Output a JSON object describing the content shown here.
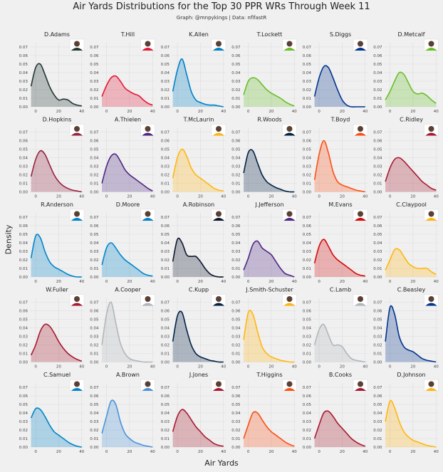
{
  "chart_data": {
    "type": "area",
    "title": "Air Yards Distributions for the Top 30 PPR WRs Through Week 11",
    "subtitle": "Graph: @mnpykings | Data: nflfastR",
    "xlabel": "Air Yards",
    "ylabel": "Density",
    "xlim": [
      -5,
      42
    ],
    "ylim": [
      0,
      0.075
    ],
    "x_ticks": [
      0,
      20,
      40
    ],
    "y_ticks": [
      0.0,
      0.01,
      0.02,
      0.03,
      0.04,
      0.05,
      0.06,
      0.07
    ],
    "y_tick_labels": [
      "0.00",
      "0.01",
      "0.02",
      "0.03",
      "0.04",
      "0.05",
      "0.06",
      "0.07"
    ],
    "grid": true,
    "panels": [
      {
        "name": "D.Adams",
        "color": "#203731",
        "x": [
          -4,
          0,
          4,
          8,
          12,
          16,
          20,
          24,
          28,
          32,
          36,
          40
        ],
        "y": [
          0.024,
          0.046,
          0.05,
          0.038,
          0.024,
          0.014,
          0.008,
          0.009,
          0.008,
          0.004,
          0.002,
          0.001
        ]
      },
      {
        "name": "T.Hill",
        "color": "#e31837",
        "x": [
          -4,
          0,
          4,
          8,
          12,
          16,
          20,
          24,
          28,
          32,
          36,
          40
        ],
        "y": [
          0.012,
          0.025,
          0.034,
          0.036,
          0.03,
          0.022,
          0.018,
          0.015,
          0.013,
          0.008,
          0.004,
          0.002
        ]
      },
      {
        "name": "K.Allen",
        "color": "#0080c6",
        "x": [
          -4,
          0,
          4,
          8,
          12,
          16,
          20,
          24,
          28,
          32,
          36,
          40
        ],
        "y": [
          0.018,
          0.043,
          0.056,
          0.038,
          0.018,
          0.008,
          0.005,
          0.003,
          0.002,
          0.002,
          0.001,
          0.0
        ]
      },
      {
        "name": "T.Lockett",
        "color": "#69be28",
        "x": [
          -4,
          0,
          4,
          8,
          12,
          16,
          20,
          24,
          28,
          32,
          36,
          40
        ],
        "y": [
          0.014,
          0.03,
          0.034,
          0.032,
          0.026,
          0.02,
          0.016,
          0.013,
          0.01,
          0.006,
          0.003,
          0.001
        ]
      },
      {
        "name": "S.Diggs",
        "color": "#00338d",
        "x": [
          -4,
          0,
          4,
          8,
          12,
          16,
          20,
          24,
          28,
          32,
          36,
          40
        ],
        "y": [
          0.012,
          0.034,
          0.047,
          0.046,
          0.034,
          0.02,
          0.008,
          0.002,
          0.0,
          0.0,
          0.0,
          0.0
        ]
      },
      {
        "name": "D.Metcalf",
        "color": "#69be28",
        "x": [
          -4,
          0,
          4,
          8,
          12,
          16,
          20,
          24,
          28,
          32,
          36,
          40
        ],
        "y": [
          0.008,
          0.018,
          0.03,
          0.04,
          0.038,
          0.028,
          0.018,
          0.015,
          0.016,
          0.013,
          0.008,
          0.004
        ]
      },
      {
        "name": "D.Hopkins",
        "color": "#97233f",
        "x": [
          -4,
          0,
          4,
          8,
          12,
          16,
          20,
          24,
          28,
          32,
          36,
          40
        ],
        "y": [
          0.018,
          0.038,
          0.048,
          0.044,
          0.032,
          0.02,
          0.012,
          0.007,
          0.004,
          0.002,
          0.001,
          0.0
        ]
      },
      {
        "name": "A.Thielen",
        "color": "#4f2683",
        "x": [
          -4,
          0,
          4,
          8,
          12,
          16,
          20,
          24,
          28,
          32,
          36,
          40
        ],
        "y": [
          0.01,
          0.03,
          0.042,
          0.044,
          0.036,
          0.026,
          0.02,
          0.016,
          0.012,
          0.008,
          0.004,
          0.001
        ]
      },
      {
        "name": "T.McLaurin",
        "color": "#ffb612",
        "x": [
          -4,
          0,
          4,
          8,
          12,
          16,
          20,
          24,
          28,
          32,
          36,
          40
        ],
        "y": [
          0.016,
          0.04,
          0.05,
          0.042,
          0.028,
          0.02,
          0.016,
          0.012,
          0.008,
          0.004,
          0.002,
          0.001
        ]
      },
      {
        "name": "R.Woods",
        "color": "#002244",
        "x": [
          -4,
          0,
          4,
          8,
          12,
          16,
          20,
          24,
          28,
          32,
          36,
          40
        ],
        "y": [
          0.022,
          0.046,
          0.048,
          0.034,
          0.02,
          0.012,
          0.008,
          0.005,
          0.003,
          0.001,
          0.0,
          0.0
        ]
      },
      {
        "name": "T.Boyd",
        "color": "#fb4f14",
        "x": [
          -4,
          0,
          4,
          8,
          12,
          16,
          20,
          24,
          28,
          32,
          36,
          40
        ],
        "y": [
          0.014,
          0.044,
          0.06,
          0.046,
          0.024,
          0.012,
          0.008,
          0.006,
          0.004,
          0.002,
          0.001,
          0.0
        ]
      },
      {
        "name": "C.Ridley",
        "color": "#a71930",
        "x": [
          -4,
          0,
          4,
          8,
          12,
          16,
          20,
          24,
          28,
          32,
          36,
          40
        ],
        "y": [
          0.012,
          0.028,
          0.038,
          0.04,
          0.036,
          0.03,
          0.024,
          0.018,
          0.012,
          0.008,
          0.004,
          0.002
        ]
      },
      {
        "name": "R.Anderson",
        "color": "#0085ca",
        "x": [
          -4,
          0,
          4,
          8,
          12,
          16,
          20,
          24,
          28,
          32,
          36,
          40
        ],
        "y": [
          0.022,
          0.048,
          0.046,
          0.03,
          0.018,
          0.012,
          0.009,
          0.006,
          0.003,
          0.001,
          0.0,
          0.0
        ]
      },
      {
        "name": "D.Moore",
        "color": "#0085ca",
        "x": [
          -4,
          0,
          4,
          8,
          12,
          16,
          20,
          24,
          28,
          32,
          36,
          40
        ],
        "y": [
          0.014,
          0.034,
          0.04,
          0.034,
          0.026,
          0.02,
          0.016,
          0.012,
          0.008,
          0.004,
          0.002,
          0.001
        ]
      },
      {
        "name": "A.Robinson",
        "color": "#0b162a",
        "x": [
          -4,
          0,
          4,
          8,
          12,
          16,
          20,
          24,
          28,
          32,
          36,
          40
        ],
        "y": [
          0.018,
          0.044,
          0.04,
          0.026,
          0.024,
          0.024,
          0.018,
          0.01,
          0.004,
          0.001,
          0.0,
          0.0
        ]
      },
      {
        "name": "J.Jefferson",
        "color": "#4f2683",
        "x": [
          -4,
          0,
          4,
          8,
          12,
          16,
          20,
          24,
          28,
          32,
          36,
          40
        ],
        "y": [
          0.008,
          0.022,
          0.038,
          0.042,
          0.034,
          0.03,
          0.026,
          0.018,
          0.01,
          0.004,
          0.002,
          0.0
        ]
      },
      {
        "name": "M.Evans",
        "color": "#d50a0a",
        "x": [
          -4,
          0,
          4,
          8,
          12,
          16,
          20,
          24,
          28,
          32,
          36,
          40
        ],
        "y": [
          0.016,
          0.036,
          0.044,
          0.036,
          0.026,
          0.02,
          0.016,
          0.012,
          0.008,
          0.004,
          0.002,
          0.001
        ]
      },
      {
        "name": "C.Claypool",
        "color": "#ffb612",
        "x": [
          -4,
          0,
          4,
          8,
          12,
          16,
          20,
          24,
          28,
          32,
          36,
          40
        ],
        "y": [
          0.008,
          0.02,
          0.032,
          0.032,
          0.024,
          0.016,
          0.012,
          0.01,
          0.01,
          0.01,
          0.006,
          0.003
        ]
      },
      {
        "name": "W.Fuller",
        "color": "#a71930",
        "x": [
          -4,
          0,
          4,
          8,
          12,
          16,
          20,
          24,
          28,
          32,
          36,
          40
        ],
        "y": [
          0.008,
          0.02,
          0.036,
          0.044,
          0.042,
          0.034,
          0.024,
          0.016,
          0.01,
          0.006,
          0.003,
          0.001
        ]
      },
      {
        "name": "A.Cooper",
        "color": "#b0b7bc",
        "x": [
          -4,
          0,
          4,
          8,
          12,
          16,
          20,
          24,
          28,
          32,
          36,
          40
        ],
        "y": [
          0.02,
          0.056,
          0.07,
          0.046,
          0.022,
          0.01,
          0.004,
          0.002,
          0.001,
          0.0,
          0.0,
          0.0
        ]
      },
      {
        "name": "C.Kupp",
        "color": "#002244",
        "x": [
          -4,
          0,
          4,
          8,
          12,
          16,
          20,
          24,
          28,
          32,
          36,
          40
        ],
        "y": [
          0.024,
          0.054,
          0.058,
          0.038,
          0.02,
          0.01,
          0.006,
          0.004,
          0.002,
          0.001,
          0.0,
          0.0
        ]
      },
      {
        "name": "J.Smith-Schuster",
        "color": "#ffb612",
        "x": [
          -4,
          0,
          4,
          8,
          12,
          16,
          20,
          24,
          28,
          32,
          36,
          40
        ],
        "y": [
          0.026,
          0.058,
          0.056,
          0.036,
          0.018,
          0.01,
          0.006,
          0.004,
          0.002,
          0.001,
          0.0,
          0.0
        ]
      },
      {
        "name": "C.Lamb",
        "color": "#b0b7bc",
        "x": [
          -4,
          0,
          4,
          8,
          12,
          16,
          20,
          24,
          28,
          32,
          36,
          40
        ],
        "y": [
          0.02,
          0.038,
          0.044,
          0.032,
          0.02,
          0.02,
          0.018,
          0.01,
          0.004,
          0.002,
          0.001,
          0.0
        ]
      },
      {
        "name": "C.Beasley",
        "color": "#00338d",
        "x": [
          -4,
          0,
          4,
          8,
          12,
          16,
          20,
          24,
          28,
          32,
          36,
          40
        ],
        "y": [
          0.024,
          0.064,
          0.056,
          0.03,
          0.018,
          0.014,
          0.012,
          0.008,
          0.004,
          0.002,
          0.001,
          0.0
        ]
      },
      {
        "name": "C.Samuel",
        "color": "#0085ca",
        "x": [
          -4,
          0,
          4,
          8,
          12,
          16,
          20,
          24,
          28,
          32,
          36,
          40
        ],
        "y": [
          0.034,
          0.045,
          0.044,
          0.036,
          0.026,
          0.018,
          0.014,
          0.01,
          0.006,
          0.003,
          0.001,
          0.0
        ]
      },
      {
        "name": "A.Brown",
        "color": "#4b92db",
        "x": [
          -4,
          0,
          4,
          8,
          12,
          16,
          20,
          24,
          28,
          32,
          36,
          40
        ],
        "y": [
          0.016,
          0.036,
          0.054,
          0.05,
          0.03,
          0.016,
          0.01,
          0.006,
          0.004,
          0.002,
          0.001,
          0.0
        ]
      },
      {
        "name": "J.Jones",
        "color": "#a71930",
        "x": [
          -4,
          0,
          4,
          8,
          12,
          16,
          20,
          24,
          28,
          32,
          36,
          40
        ],
        "y": [
          0.018,
          0.036,
          0.044,
          0.04,
          0.032,
          0.024,
          0.018,
          0.012,
          0.008,
          0.004,
          0.002,
          0.001
        ]
      },
      {
        "name": "T.Higgins",
        "color": "#fb4f14",
        "x": [
          -4,
          0,
          4,
          8,
          12,
          16,
          20,
          24,
          28,
          32,
          36,
          40
        ],
        "y": [
          0.01,
          0.026,
          0.04,
          0.04,
          0.032,
          0.024,
          0.018,
          0.014,
          0.01,
          0.006,
          0.003,
          0.001
        ]
      },
      {
        "name": "B.Cooks",
        "color": "#a71930",
        "x": [
          -4,
          0,
          4,
          8,
          12,
          16,
          20,
          24,
          28,
          32,
          36,
          40
        ],
        "y": [
          0.01,
          0.026,
          0.04,
          0.042,
          0.036,
          0.028,
          0.022,
          0.016,
          0.01,
          0.006,
          0.003,
          0.001
        ]
      },
      {
        "name": "D.Johnson",
        "color": "#ffb612",
        "x": [
          -4,
          0,
          4,
          8,
          12,
          16,
          20,
          24,
          28,
          32,
          36,
          40
        ],
        "y": [
          0.03,
          0.054,
          0.046,
          0.03,
          0.018,
          0.012,
          0.008,
          0.006,
          0.004,
          0.002,
          0.001,
          0.0
        ]
      }
    ]
  }
}
